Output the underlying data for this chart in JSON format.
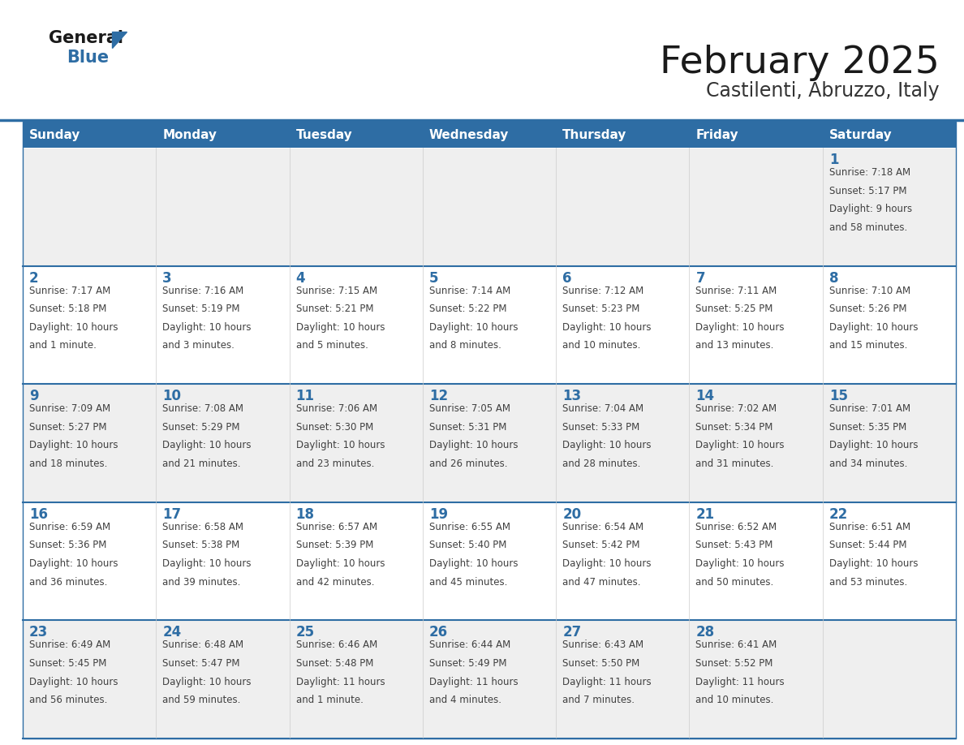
{
  "title": "February 2025",
  "subtitle": "Castilenti, Abruzzo, Italy",
  "days_of_week": [
    "Sunday",
    "Monday",
    "Tuesday",
    "Wednesday",
    "Thursday",
    "Friday",
    "Saturday"
  ],
  "header_bg": "#2E6DA4",
  "header_text": "#FFFFFF",
  "cell_bg_odd": "#EFEFEF",
  "cell_bg_even": "#FFFFFF",
  "border_color": "#2E6DA4",
  "day_num_color": "#2E6DA4",
  "cell_text_color": "#404040",
  "title_color": "#1A1A1A",
  "subtitle_color": "#333333",
  "logo_general_color": "#1A1A1A",
  "logo_blue_color": "#2E6DA4",
  "calendar_data": {
    "1": {
      "sunrise": "7:18 AM",
      "sunset": "5:17 PM",
      "daylight": "9 hours",
      "daylight2": "and 58 minutes."
    },
    "2": {
      "sunrise": "7:17 AM",
      "sunset": "5:18 PM",
      "daylight": "10 hours",
      "daylight2": "and 1 minute."
    },
    "3": {
      "sunrise": "7:16 AM",
      "sunset": "5:19 PM",
      "daylight": "10 hours",
      "daylight2": "and 3 minutes."
    },
    "4": {
      "sunrise": "7:15 AM",
      "sunset": "5:21 PM",
      "daylight": "10 hours",
      "daylight2": "and 5 minutes."
    },
    "5": {
      "sunrise": "7:14 AM",
      "sunset": "5:22 PM",
      "daylight": "10 hours",
      "daylight2": "and 8 minutes."
    },
    "6": {
      "sunrise": "7:12 AM",
      "sunset": "5:23 PM",
      "daylight": "10 hours",
      "daylight2": "and 10 minutes."
    },
    "7": {
      "sunrise": "7:11 AM",
      "sunset": "5:25 PM",
      "daylight": "10 hours",
      "daylight2": "and 13 minutes."
    },
    "8": {
      "sunrise": "7:10 AM",
      "sunset": "5:26 PM",
      "daylight": "10 hours",
      "daylight2": "and 15 minutes."
    },
    "9": {
      "sunrise": "7:09 AM",
      "sunset": "5:27 PM",
      "daylight": "10 hours",
      "daylight2": "and 18 minutes."
    },
    "10": {
      "sunrise": "7:08 AM",
      "sunset": "5:29 PM",
      "daylight": "10 hours",
      "daylight2": "and 21 minutes."
    },
    "11": {
      "sunrise": "7:06 AM",
      "sunset": "5:30 PM",
      "daylight": "10 hours",
      "daylight2": "and 23 minutes."
    },
    "12": {
      "sunrise": "7:05 AM",
      "sunset": "5:31 PM",
      "daylight": "10 hours",
      "daylight2": "and 26 minutes."
    },
    "13": {
      "sunrise": "7:04 AM",
      "sunset": "5:33 PM",
      "daylight": "10 hours",
      "daylight2": "and 28 minutes."
    },
    "14": {
      "sunrise": "7:02 AM",
      "sunset": "5:34 PM",
      "daylight": "10 hours",
      "daylight2": "and 31 minutes."
    },
    "15": {
      "sunrise": "7:01 AM",
      "sunset": "5:35 PM",
      "daylight": "10 hours",
      "daylight2": "and 34 minutes."
    },
    "16": {
      "sunrise": "6:59 AM",
      "sunset": "5:36 PM",
      "daylight": "10 hours",
      "daylight2": "and 36 minutes."
    },
    "17": {
      "sunrise": "6:58 AM",
      "sunset": "5:38 PM",
      "daylight": "10 hours",
      "daylight2": "and 39 minutes."
    },
    "18": {
      "sunrise": "6:57 AM",
      "sunset": "5:39 PM",
      "daylight": "10 hours",
      "daylight2": "and 42 minutes."
    },
    "19": {
      "sunrise": "6:55 AM",
      "sunset": "5:40 PM",
      "daylight": "10 hours",
      "daylight2": "and 45 minutes."
    },
    "20": {
      "sunrise": "6:54 AM",
      "sunset": "5:42 PM",
      "daylight": "10 hours",
      "daylight2": "and 47 minutes."
    },
    "21": {
      "sunrise": "6:52 AM",
      "sunset": "5:43 PM",
      "daylight": "10 hours",
      "daylight2": "and 50 minutes."
    },
    "22": {
      "sunrise": "6:51 AM",
      "sunset": "5:44 PM",
      "daylight": "10 hours",
      "daylight2": "and 53 minutes."
    },
    "23": {
      "sunrise": "6:49 AM",
      "sunset": "5:45 PM",
      "daylight": "10 hours",
      "daylight2": "and 56 minutes."
    },
    "24": {
      "sunrise": "6:48 AM",
      "sunset": "5:47 PM",
      "daylight": "10 hours",
      "daylight2": "and 59 minutes."
    },
    "25": {
      "sunrise": "6:46 AM",
      "sunset": "5:48 PM",
      "daylight": "11 hours",
      "daylight2": "and 1 minute."
    },
    "26": {
      "sunrise": "6:44 AM",
      "sunset": "5:49 PM",
      "daylight": "11 hours",
      "daylight2": "and 4 minutes."
    },
    "27": {
      "sunrise": "6:43 AM",
      "sunset": "5:50 PM",
      "daylight": "11 hours",
      "daylight2": "and 7 minutes."
    },
    "28": {
      "sunrise": "6:41 AM",
      "sunset": "5:52 PM",
      "daylight": "11 hours",
      "daylight2": "and 10 minutes."
    }
  },
  "week_layout": [
    [
      null,
      null,
      null,
      null,
      null,
      null,
      1
    ],
    [
      2,
      3,
      4,
      5,
      6,
      7,
      8
    ],
    [
      9,
      10,
      11,
      12,
      13,
      14,
      15
    ],
    [
      16,
      17,
      18,
      19,
      20,
      21,
      22
    ],
    [
      23,
      24,
      25,
      26,
      27,
      28,
      null
    ]
  ]
}
